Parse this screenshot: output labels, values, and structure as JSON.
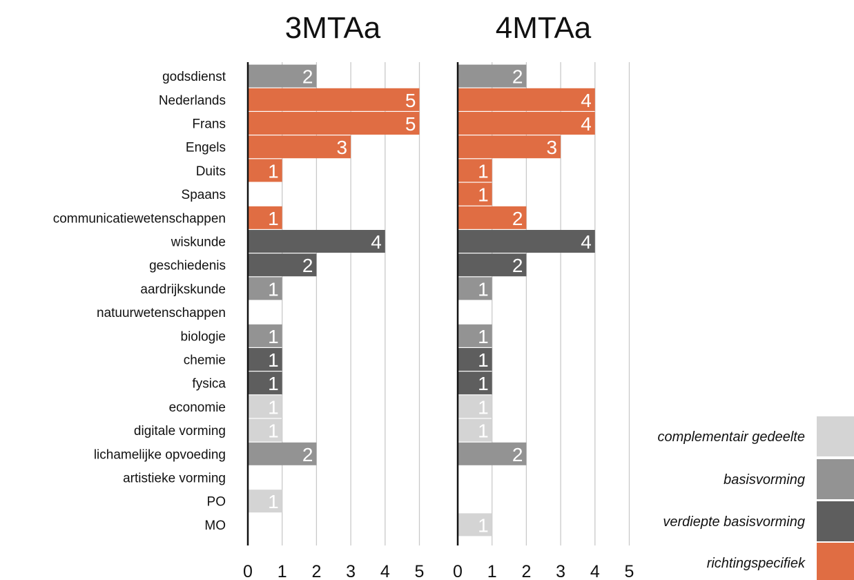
{
  "chart_data": {
    "type": "bar",
    "orientation": "horizontal",
    "stacked": false,
    "grid": true,
    "xlim": [
      0,
      5
    ],
    "ticks": [
      "0",
      "1",
      "2",
      "3",
      "4",
      "5"
    ],
    "categories": [
      "godsdienst",
      "Nederlands",
      "Frans",
      "Engels",
      "Duits",
      "Spaans",
      "communicatiewetenschappen",
      "wiskunde",
      "geschiedenis",
      "aardrijkskunde",
      "natuurwetenschappen",
      "biologie",
      "chemie",
      "fysica",
      "economie",
      "digitale vorming",
      "lichamelijke opvoeding",
      "artistieke vorming",
      "PO",
      "MO"
    ],
    "category_types": [
      "basis",
      "richting",
      "richting",
      "richting",
      "richting",
      "richting",
      "richting",
      "verdiept",
      "verdiept",
      "basis",
      "none",
      "basis",
      "verdiept",
      "verdiept",
      "complementair",
      "complementair",
      "basis",
      "none",
      "complementair",
      "complementair"
    ],
    "panels": [
      {
        "title": "3MTAa",
        "values": [
          2,
          5,
          5,
          3,
          1,
          0,
          1,
          4,
          2,
          1,
          0,
          1,
          1,
          1,
          1,
          1,
          2,
          0,
          1,
          0
        ]
      },
      {
        "title": "4MTAa",
        "values": [
          2,
          4,
          4,
          3,
          1,
          1,
          2,
          4,
          2,
          1,
          0,
          1,
          1,
          1,
          1,
          1,
          2,
          0,
          0,
          1
        ]
      }
    ],
    "legend": {
      "placement": "bottom-right",
      "entries": [
        {
          "key": "complementair",
          "label": "complementair gedeelte",
          "color": "#d4d4d4"
        },
        {
          "key": "basis",
          "label": "basisvorming",
          "color": "#939393"
        },
        {
          "key": "verdiept",
          "label": "verdiepte basisvorming",
          "color": "#5e5e5e"
        },
        {
          "key": "richting",
          "label": "richtingspecifiek",
          "color": "#e06d43"
        }
      ]
    }
  }
}
